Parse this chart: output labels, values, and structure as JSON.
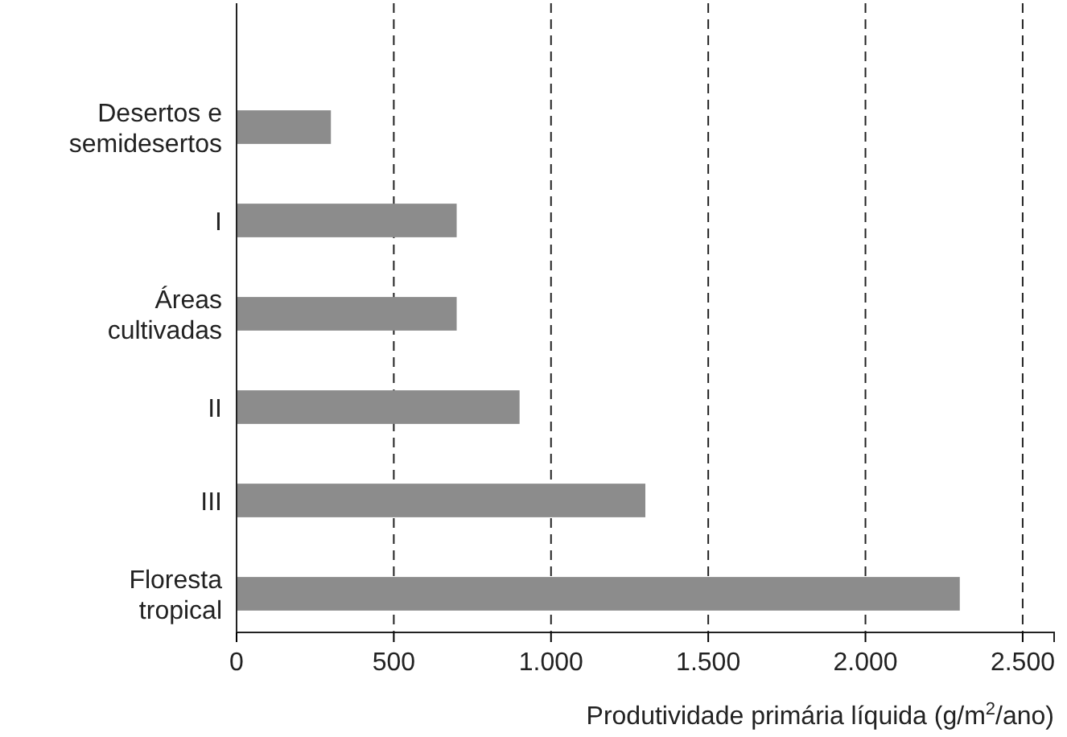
{
  "chart_data": {
    "type": "bar",
    "orientation": "horizontal",
    "xlabel": "Produtividade primária líquida (g/m$^{2}$/ano)",
    "categories": [
      "Desertos e semidesertos",
      "I",
      "Áreas cultivadas",
      "II",
      "III",
      "Floresta tropical"
    ],
    "values": [
      300,
      700,
      700,
      900,
      1300,
      2300
    ],
    "color": "#8c8c8c",
    "xlim": [
      0,
      2600
    ],
    "xticks": [
      0,
      500,
      {
        "value": 1000,
        "label": "1.000"
      },
      {
        "value": 1500,
        "label": "1.500"
      },
      {
        "value": 2000,
        "label": "2.000"
      },
      {
        "value": 2500,
        "label": "2.500"
      }
    ],
    "grid": "x"
  }
}
